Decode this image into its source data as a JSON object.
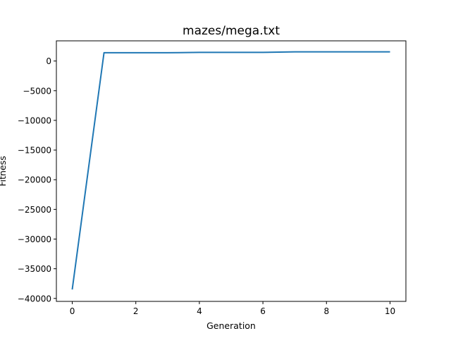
{
  "chart_data": {
    "type": "line",
    "title": "mazes/mega.txt",
    "xlabel": "Generation",
    "ylabel": "Fitness",
    "xlim": [
      -0.5,
      10.5
    ],
    "ylim": [
      -40500,
      3400
    ],
    "x_ticks": [
      0,
      2,
      4,
      6,
      8,
      10
    ],
    "y_ticks": [
      0,
      -5000,
      -10000,
      -15000,
      -20000,
      -25000,
      -30000,
      -35000,
      -40000
    ],
    "grid": false,
    "legend": "none",
    "series": [
      {
        "color": "#1f77b4",
        "x": [
          0,
          1,
          2,
          3,
          4,
          5,
          6,
          7,
          8,
          9,
          10
        ],
        "y": [
          -38500,
          1400,
          1400,
          1400,
          1450,
          1450,
          1450,
          1550,
          1550,
          1550,
          1550
        ]
      }
    ]
  }
}
